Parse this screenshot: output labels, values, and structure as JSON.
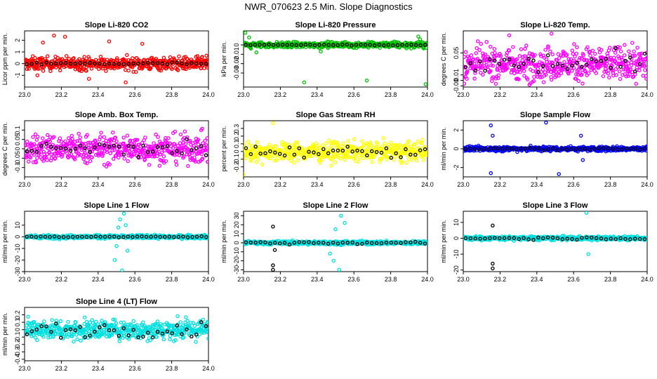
{
  "title": "NWR_070623  2.5 Min. Slope Diagnostics",
  "chart_data": [
    {
      "type": "scatter",
      "title": "Slope Li-820 CO2",
      "ylabel": "Licor ppm per min.",
      "color": "#ff0000",
      "xlim": [
        23.0,
        24.0
      ],
      "ylim": [
        -2.0,
        2.8
      ],
      "xticks": [
        23.0,
        23.2,
        23.4,
        23.6,
        23.8,
        24.0
      ],
      "yticks": [
        -1,
        0,
        1,
        2
      ],
      "spread": 0.55,
      "outliers": [
        [
          23.16,
          2.4
        ],
        [
          23.22,
          2.3
        ],
        [
          23.1,
          1.8
        ],
        [
          23.46,
          1.9
        ],
        [
          23.35,
          -1.3
        ],
        [
          23.55,
          -1.6
        ],
        [
          23.07,
          -1.0
        ],
        [
          23.64,
          1.7
        ]
      ],
      "black": {
        "n": 38,
        "spread": 0.12
      }
    },
    {
      "type": "scatter",
      "title": "Slope Li-820 Pressure",
      "ylabel": "kPa per min.",
      "color": "#00c000",
      "xlim": [
        23.0,
        24.0
      ],
      "ylim": [
        -0.045,
        0.015
      ],
      "xticks": [
        23.0,
        23.2,
        23.4,
        23.6,
        23.8,
        24.0
      ],
      "yticks": [
        -0.03,
        -0.02,
        -0.01,
        0.0
      ],
      "spread": 0.003,
      "outliers": [
        [
          23.01,
          0.013
        ],
        [
          23.03,
          0.008
        ],
        [
          23.07,
          -0.008
        ],
        [
          23.33,
          -0.04
        ],
        [
          23.42,
          -0.007
        ],
        [
          23.67,
          -0.038
        ],
        [
          23.95,
          0.009
        ],
        [
          23.99,
          -0.042
        ],
        [
          23.04,
          -0.004
        ],
        [
          23.96,
          0.006
        ]
      ],
      "black": {
        "n": 40,
        "spread": 0.0008
      }
    },
    {
      "type": "scatter",
      "title": "Slope Li-820 Temp.",
      "ylabel": "degrees C per min.",
      "color": "#ff00ff",
      "xlim": [
        23.0,
        24.0
      ],
      "ylim": [
        -0.012,
        0.09
      ],
      "xticks": [
        23.0,
        23.2,
        23.4,
        23.6,
        23.8,
        24.0
      ],
      "yticks": [
        -0.01,
        0.0,
        0.01,
        0.05
      ],
      "spread": 0.03,
      "outliers": [
        [
          23.48,
          0.085
        ],
        [
          23.25,
          0.082
        ],
        [
          23.36,
          -0.008
        ]
      ],
      "black": {
        "n": 38,
        "spread": 0.02
      },
      "center": 0.03
    },
    {
      "type": "scatter",
      "title": "Slope Amb. Box Temp.",
      "ylabel": "degrees C per min.",
      "color": "#ff00ff",
      "xlim": [
        23.0,
        24.0
      ],
      "ylim": [
        -0.15,
        0.15
      ],
      "xticks": [
        23.0,
        23.2,
        23.4,
        23.6,
        23.8,
        24.0
      ],
      "yticks": [
        -0.1,
        -0.05,
        0.0,
        0.05,
        0.1
      ],
      "spread": 0.075,
      "outliers": [],
      "black": {
        "n": 38,
        "spread": 0.05
      }
    },
    {
      "type": "scatter",
      "title": "Slope Gas Stream RH",
      "ylabel": "percent per min.",
      "color": "#ffff00",
      "xlim": [
        23.0,
        24.0
      ],
      "ylim": [
        -0.33,
        0.4
      ],
      "xticks": [
        23.0,
        23.2,
        23.4,
        23.6,
        23.8,
        24.0
      ],
      "yticks": [
        -0.2,
        -0.1,
        0.0,
        0.1,
        0.2,
        0.3
      ],
      "spread": 0.12,
      "outliers": [
        [
          23.16,
          0.37
        ],
        [
          23.0,
          -0.3
        ]
      ],
      "black": {
        "n": 38,
        "spread": 0.07
      }
    },
    {
      "type": "scatter",
      "title": "Slope Sample Flow",
      "ylabel": "ml/min per min.",
      "color": "#0000ff",
      "xlim": [
        23.0,
        24.0
      ],
      "ylim": [
        -3.0,
        3.0
      ],
      "xticks": [
        23.0,
        23.2,
        23.4,
        23.6,
        23.8,
        24.0
      ],
      "yticks": [
        -2,
        0,
        2
      ],
      "spread": 0.25,
      "outliers": [
        [
          23.15,
          2.5
        ],
        [
          23.45,
          2.8
        ],
        [
          23.16,
          1.4
        ],
        [
          23.52,
          -2.7
        ],
        [
          23.15,
          -2.6
        ],
        [
          23.64,
          1.4
        ],
        [
          23.65,
          -1.2
        ]
      ],
      "black": {
        "n": 40,
        "spread": 0.12
      }
    },
    {
      "type": "scatter",
      "title": "Slope Line 1 Flow",
      "ylabel": "ml/min per min.",
      "color": "#00e0e0",
      "xlim": [
        23.0,
        24.0
      ],
      "ylim": [
        -30,
        22
      ],
      "xticks": [
        23.0,
        23.2,
        23.4,
        23.6,
        23.8,
        24.0
      ],
      "yticks": [
        -30,
        -20,
        -10,
        0,
        10
      ],
      "spread": 1.5,
      "outliers": [
        [
          23.52,
          15
        ],
        [
          23.54,
          20
        ],
        [
          23.55,
          10
        ],
        [
          23.49,
          -20
        ],
        [
          23.53,
          -29
        ],
        [
          23.5,
          -8
        ],
        [
          23.56,
          -12
        ],
        [
          23.51,
          8
        ]
      ],
      "black": {
        "n": 40,
        "spread": 0.4
      }
    },
    {
      "type": "scatter",
      "title": "Slope Line 2 Flow",
      "ylabel": "ml/min per min.",
      "color": "#00e0e0",
      "xlim": [
        23.0,
        24.0
      ],
      "ylim": [
        -32,
        35
      ],
      "xticks": [
        23.0,
        23.2,
        23.4,
        23.6,
        23.8,
        24.0
      ],
      "yticks": [
        -30,
        -20,
        -10,
        0,
        10,
        20,
        30
      ],
      "spread": 2.0,
      "outliers": [
        [
          23.53,
          30
        ],
        [
          23.55,
          22
        ],
        [
          23.49,
          -20
        ],
        [
          23.52,
          -30
        ],
        [
          23.5,
          15
        ],
        [
          23.47,
          -12
        ]
      ],
      "black": {
        "n": 38,
        "spread": 1.5
      },
      "black_outliers": [
        [
          23.16,
          18
        ],
        [
          23.16,
          -25
        ],
        [
          23.16,
          -30
        ],
        [
          23.17,
          -8
        ]
      ]
    },
    {
      "type": "scatter",
      "title": "Slope Line 3 Flow",
      "ylabel": "ml/min per min.",
      "color": "#00e0e0",
      "xlim": [
        23.0,
        24.0
      ],
      "ylim": [
        -21,
        17
      ],
      "xticks": [
        23.0,
        23.2,
        23.4,
        23.6,
        23.8,
        24.0
      ],
      "yticks": [
        -20,
        -10,
        0,
        10
      ],
      "spread": 1.2,
      "outliers": [
        [
          23.67,
          16
        ],
        [
          23.68,
          -10
        ]
      ],
      "black": {
        "n": 38,
        "spread": 0.8
      },
      "black_outliers": [
        [
          23.16,
          8
        ],
        [
          23.16,
          -16
        ],
        [
          23.16,
          -19
        ]
      ]
    },
    {
      "type": "scatter",
      "title": "Slope Line 4 (LT) Flow",
      "ylabel": "ml/min per min.",
      "color": "#00e0e0",
      "xlim": [
        23.0,
        24.0
      ],
      "ylim": [
        -0.42,
        0.3
      ],
      "xticks": [
        23.0,
        23.2,
        23.4,
        23.6,
        23.8,
        24.0
      ],
      "yticks": [
        -0.4,
        -0.3,
        -0.2,
        -0.1,
        0.0,
        0.1,
        0.2
      ],
      "spread": 0.13,
      "outliers": [],
      "black": {
        "n": 38,
        "spread": 0.1
      }
    }
  ]
}
